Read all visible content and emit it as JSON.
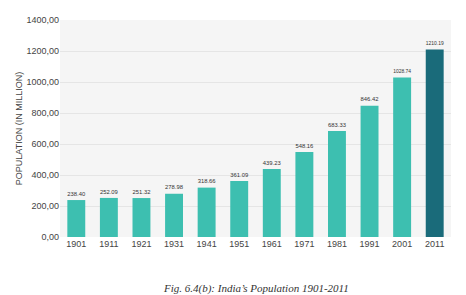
{
  "chart_data": {
    "type": "bar",
    "categories": [
      "1901",
      "1911",
      "1921",
      "1931",
      "1941",
      "1951",
      "1961",
      "1971",
      "1981",
      "1991",
      "2001",
      "2011"
    ],
    "values": [
      238.4,
      252.09,
      251.32,
      278.98,
      318.66,
      361.09,
      439.23,
      548.16,
      683.33,
      846.42,
      1028.74,
      1210.19
    ],
    "value_labels": [
      "238.40",
      "252.09",
      "251.32",
      "278.98",
      "318.66",
      "361.09",
      "439.23",
      "548.16",
      "683.33",
      "846.42",
      "1028.74",
      "1210.19"
    ],
    "data_labels": true,
    "colors": [
      "#3DBFB0",
      "#3DBFB0",
      "#3DBFB0",
      "#3DBFB0",
      "#3DBFB0",
      "#3DBFB0",
      "#3DBFB0",
      "#3DBFB0",
      "#3DBFB0",
      "#3DBFB0",
      "#3DBFB0",
      "#1A6B7A"
    ],
    "ylabel": "POPULATION (IN MILLION)",
    "caption": "Fig. 6.4(b): India’s Population 1901-2011",
    "ylim": [
      0,
      1400
    ],
    "yticks": [
      {
        "value": 0,
        "label": "0,00"
      },
      {
        "value": 200,
        "label": "200,00"
      },
      {
        "value": 400,
        "label": "400,00"
      },
      {
        "value": 600,
        "label": "600,00"
      },
      {
        "value": 800,
        "label": "800,00"
      },
      {
        "value": 1000,
        "label": "1000,00"
      },
      {
        "value": 1200,
        "label": "1200,00"
      },
      {
        "value": 1400,
        "label": "1400,00"
      }
    ],
    "grid": true
  }
}
